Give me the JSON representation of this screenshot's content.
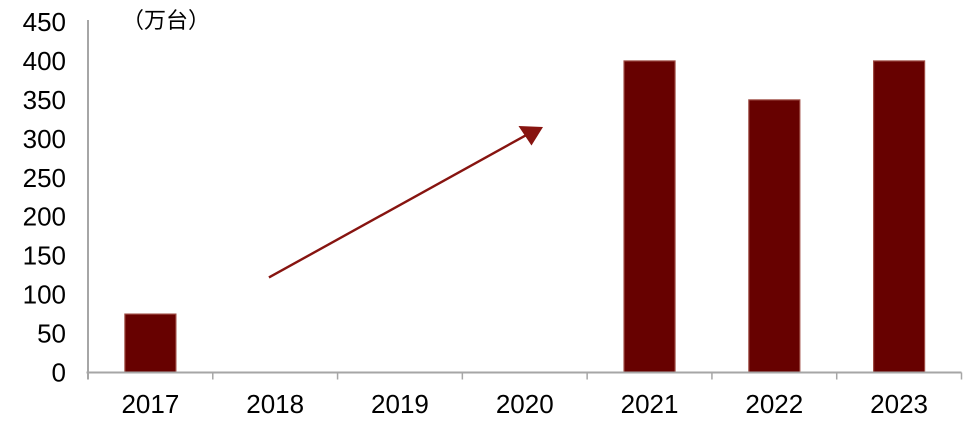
{
  "chart_data": {
    "type": "bar",
    "title": "",
    "unit_label": "（万台）",
    "categories": [
      "2017",
      "2018",
      "2019",
      "2020",
      "2021",
      "2022",
      "2023"
    ],
    "values": [
      75,
      null,
      null,
      null,
      400,
      350,
      400
    ],
    "xlabel": "",
    "ylabel": "",
    "ylim": [
      0,
      450
    ],
    "y_tick_step": 50,
    "y_ticks": [
      0,
      50,
      100,
      150,
      200,
      250,
      300,
      350,
      400,
      450
    ],
    "grid": false,
    "legend": "none",
    "annotations": [
      {
        "type": "arrow",
        "from": {
          "category_position": 1.45,
          "value": 122
        },
        "to": {
          "category_position": 3.55,
          "value": 310
        }
      }
    ]
  },
  "colors": {
    "background": "#ffffff",
    "bar_fill": "#670100",
    "bar_border": "#9d4a42",
    "arrow": "#871410",
    "axis": "#a6a6a6",
    "text": "#000000"
  }
}
